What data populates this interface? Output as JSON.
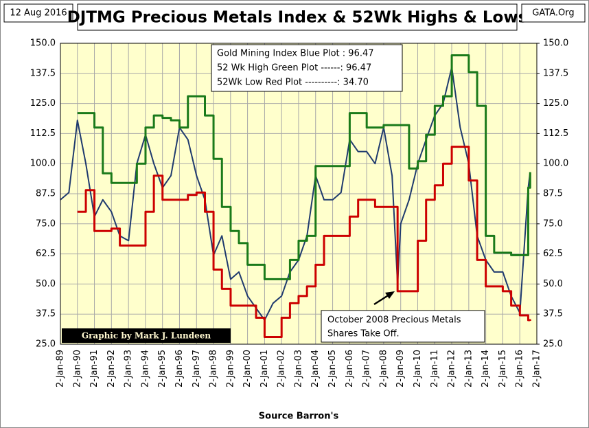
{
  "chart_data": {
    "type": "line",
    "title": "DJTMG Precious Metals Index & 52Wk Highs & Lows",
    "date_label": "12 Aug 2016",
    "source_label": "GATA.Org",
    "credit": "Graphic by Mark J. Lundeen",
    "annotation": [
      "October 2008 Precious Metals",
      "Shares Take Off."
    ],
    "x_axis_label": "Source Barron's",
    "grid": true,
    "background": "#ffffcc",
    "x": [
      "1989-01-02",
      "1989-07-03",
      "1990-01-02",
      "1990-07-02",
      "1991-01-02",
      "1991-07-01",
      "1992-01-02",
      "1992-07-01",
      "1993-01-04",
      "1993-07-01",
      "1994-01-03",
      "1994-07-01",
      "1995-01-03",
      "1995-07-03",
      "1996-01-02",
      "1996-07-01",
      "1997-01-02",
      "1997-07-01",
      "1998-01-02",
      "1998-07-01",
      "1999-01-04",
      "1999-07-01",
      "2000-01-03",
      "2000-07-03",
      "2001-01-02",
      "2001-07-02",
      "2002-01-02",
      "2002-07-01",
      "2003-01-02",
      "2003-07-01",
      "2004-01-02",
      "2004-07-01",
      "2005-01-03",
      "2005-07-01",
      "2006-01-03",
      "2006-07-03",
      "2007-01-03",
      "2007-07-02",
      "2008-01-02",
      "2008-07-01",
      "2008-10-27",
      "2009-01-02",
      "2009-07-01",
      "2010-01-04",
      "2010-07-01",
      "2011-01-03",
      "2011-07-01",
      "2012-01-03",
      "2012-07-02",
      "2013-01-02",
      "2013-07-01",
      "2014-01-02",
      "2014-07-01",
      "2015-01-02",
      "2015-07-01",
      "2016-01-04",
      "2016-07-01",
      "2016-08-12"
    ],
    "series": [
      {
        "name": "Gold Mining Index Blue Plot : 96.47",
        "color": "#1f3a6e",
        "step": false,
        "values": [
          85,
          88,
          118,
          100,
          78,
          85,
          80,
          70,
          68,
          100,
          112,
          100,
          90,
          95,
          115,
          110,
          95,
          85,
          62,
          70,
          52,
          55,
          45,
          40,
          35,
          42,
          45,
          55,
          60,
          70,
          95,
          85,
          85,
          88,
          110,
          105,
          105,
          100,
          115,
          95,
          50,
          75,
          85,
          100,
          110,
          120,
          125,
          140,
          115,
          100,
          70,
          60,
          55,
          55,
          45,
          38,
          90,
          96.47
        ]
      },
      {
        "name": "52 Wk High  Green Plot ------: 96.47",
        "color": "#1a7a1a",
        "step": true,
        "values": [
          null,
          null,
          121,
          121,
          115,
          96,
          92,
          92,
          92,
          100,
          115,
          120,
          119,
          118,
          115,
          128,
          128,
          120,
          102,
          82,
          72,
          67,
          58,
          58,
          52,
          52,
          52,
          60,
          68,
          70,
          99,
          99,
          99,
          99,
          121,
          121,
          115,
          115,
          116,
          116,
          116,
          116,
          98,
          101,
          112,
          124,
          128,
          145,
          145,
          138,
          124,
          70,
          63,
          63,
          62,
          62,
          90,
          96.47
        ]
      },
      {
        "name": "52Wk Low  Red Plot ----------: 34.70",
        "color": "#cc0000",
        "step": true,
        "values": [
          null,
          null,
          80,
          89,
          72,
          72,
          73,
          66,
          66,
          66,
          80,
          95,
          85,
          85,
          85,
          87,
          88,
          80,
          56,
          48,
          41,
          41,
          41,
          36,
          28,
          28,
          36,
          42,
          45,
          49,
          58,
          70,
          70,
          70,
          78,
          85,
          85,
          82,
          82,
          82,
          47,
          47,
          47,
          68,
          85,
          91,
          100,
          107,
          107,
          93,
          60,
          49,
          49,
          47,
          41,
          37,
          35,
          34.7
        ]
      }
    ],
    "xlim": [
      "1989-01-02",
      "2017-01-02"
    ],
    "xticks": [
      {
        "value": "1989-01-02",
        "label": "2-Jan-89"
      },
      {
        "value": "1990-01-02",
        "label": "2-Jan-90"
      },
      {
        "value": "1991-01-02",
        "label": "2-Jan-91"
      },
      {
        "value": "1992-01-02",
        "label": "2-Jan-92"
      },
      {
        "value": "1993-01-02",
        "label": "2-Jan-93"
      },
      {
        "value": "1994-01-02",
        "label": "2-Jan-94"
      },
      {
        "value": "1995-01-02",
        "label": "2-Jan-95"
      },
      {
        "value": "1996-01-02",
        "label": "2-Jan-96"
      },
      {
        "value": "1997-01-02",
        "label": "2-Jan-97"
      },
      {
        "value": "1998-01-02",
        "label": "2-Jan-98"
      },
      {
        "value": "1999-01-02",
        "label": "2-Jan-99"
      },
      {
        "value": "2000-01-02",
        "label": "2-Jan-00"
      },
      {
        "value": "2001-01-02",
        "label": "2-Jan-01"
      },
      {
        "value": "2002-01-02",
        "label": "2-Jan-02"
      },
      {
        "value": "2003-01-02",
        "label": "2-Jan-03"
      },
      {
        "value": "2004-01-02",
        "label": "2-Jan-04"
      },
      {
        "value": "2005-01-02",
        "label": "2-Jan-05"
      },
      {
        "value": "2006-01-02",
        "label": "2-Jan-06"
      },
      {
        "value": "2007-01-02",
        "label": "2-Jan-07"
      },
      {
        "value": "2008-01-02",
        "label": "2-Jan-08"
      },
      {
        "value": "2009-01-02",
        "label": "2-Jan-09"
      },
      {
        "value": "2010-01-02",
        "label": "2-Jan-10"
      },
      {
        "value": "2011-01-02",
        "label": "2-Jan-11"
      },
      {
        "value": "2012-01-02",
        "label": "2-Jan-12"
      },
      {
        "value": "2013-01-02",
        "label": "2-Jan-13"
      },
      {
        "value": "2014-01-02",
        "label": "2-Jan-14"
      },
      {
        "value": "2015-01-02",
        "label": "2-Jan-15"
      },
      {
        "value": "2016-01-02",
        "label": "2-Jan-16"
      },
      {
        "value": "2017-01-02",
        "label": "2-Jan-17"
      }
    ],
    "ylim": [
      25,
      150
    ],
    "yticks": [
      {
        "value": 25,
        "label": "25.0"
      },
      {
        "value": 37.5,
        "label": "37.5"
      },
      {
        "value": 50,
        "label": "50.0"
      },
      {
        "value": 62.5,
        "label": "62.5"
      },
      {
        "value": 75,
        "label": "75.0"
      },
      {
        "value": 87.5,
        "label": "87.5"
      },
      {
        "value": 100,
        "label": "100.0"
      },
      {
        "value": 112.5,
        "label": "112.5"
      },
      {
        "value": 125,
        "label": "125.0"
      },
      {
        "value": 137.5,
        "label": "137.5"
      },
      {
        "value": 150,
        "label": "150.0"
      }
    ],
    "y2lim": [
      25,
      150
    ],
    "y2ticks": [
      {
        "value": 25,
        "label": "25.0"
      },
      {
        "value": 37.5,
        "label": "37.5"
      },
      {
        "value": 50,
        "label": "50.0"
      },
      {
        "value": 62.5,
        "label": "62.5"
      },
      {
        "value": 75,
        "label": "75.0"
      },
      {
        "value": 87.5,
        "label": "87.5"
      },
      {
        "value": 100,
        "label": "100.0"
      },
      {
        "value": 112.5,
        "label": "112.5"
      },
      {
        "value": 125,
        "label": "125.0"
      },
      {
        "value": 137.5,
        "label": "137.5"
      },
      {
        "value": 150,
        "label": "150.0"
      }
    ]
  }
}
